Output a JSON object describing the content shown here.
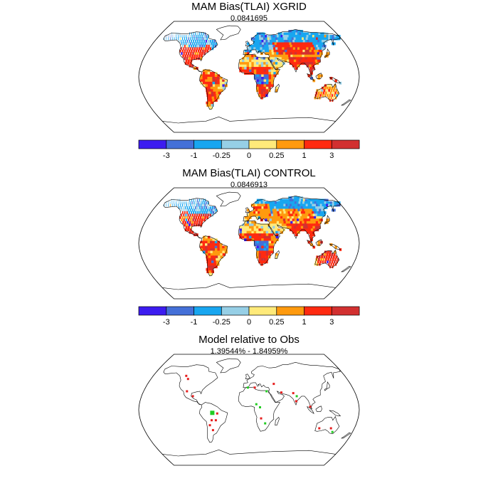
{
  "colors": {
    "lt-3": "#3c1cf0",
    "-3to-1": "#4470d8",
    "-1to-0.25": "#18a6f0",
    "-0.25to0": "#96cfe6",
    "0to0.25": "#ffea7a",
    "0.25to1": "#ff9a0e",
    "1to3": "#ff2a10",
    "gt3": "#d23030",
    "relative_high": "#e61e1e",
    "relative_low": "#22cc22",
    "coast": "#000000"
  },
  "colorbar": {
    "levels": [
      "-3",
      "-1",
      "-0.25",
      "0",
      "0.25",
      "1",
      "3"
    ],
    "bins": [
      "lt-3",
      "-3to-1",
      "-1to-0.25",
      "-0.25to0",
      "0to0.25",
      "0.25to1",
      "1to3",
      "gt3"
    ]
  },
  "panels": [
    {
      "title": "MAM Bias(TLAI) XGRID",
      "subtitle": "0.0841695"
    },
    {
      "title": "MAM Bias(TLAI) CONTROL",
      "subtitle": "0.0846913"
    },
    {
      "title": "Model relative to Obs",
      "subtitle": "1.39544% - 1.84959%"
    }
  ],
  "chart_data": [
    {
      "type": "heatmap",
      "title": "MAM Bias(TLAI) XGRID",
      "subtitle": "0.0841695",
      "projection": "Robinson",
      "colorbar_levels": [
        -3,
        -1,
        -0.25,
        0,
        0.25,
        1,
        3
      ],
      "regions": [
        {
          "name": "Alaska / W Canada",
          "lon": [
            -165,
            -115
          ],
          "lat": [
            52,
            72
          ],
          "class": "-1to-0.25"
        },
        {
          "name": "E Canada",
          "lon": [
            -110,
            -60
          ],
          "lat": [
            50,
            70
          ],
          "class": "-1to-0.25"
        },
        {
          "name": "USA",
          "lon": [
            -125,
            -70
          ],
          "lat": [
            28,
            50
          ],
          "class": "1to3"
        },
        {
          "name": "Mexico / Central America",
          "lon": [
            -115,
            -80
          ],
          "lat": [
            10,
            28
          ],
          "class": "1to3"
        },
        {
          "name": "Amazon",
          "lon": [
            -75,
            -48
          ],
          "lat": [
            -12,
            5
          ],
          "class": "1to3"
        },
        {
          "name": "Brazil east",
          "lon": [
            -50,
            -36
          ],
          "lat": [
            -20,
            -3
          ],
          "class": "0to0.25"
        },
        {
          "name": "Southern South America",
          "lon": [
            -72,
            -55
          ],
          "lat": [
            -45,
            -20
          ],
          "class": "1to3"
        },
        {
          "name": "Europe",
          "lon": [
            -10,
            40
          ],
          "lat": [
            42,
            62
          ],
          "class": "-1to-0.25"
        },
        {
          "name": "Northern Eurasia",
          "lon": [
            40,
            175
          ],
          "lat": [
            55,
            72
          ],
          "class": "-1to-0.25"
        },
        {
          "name": "Central Asia",
          "lon": [
            45,
            120
          ],
          "lat": [
            38,
            55
          ],
          "class": "1to3"
        },
        {
          "name": "Sahara / Arabia",
          "lon": [
            -15,
            60
          ],
          "lat": [
            15,
            32
          ],
          "class": "0to0.25"
        },
        {
          "name": "Sahel / West Africa",
          "lon": [
            -15,
            35
          ],
          "lat": [
            5,
            15
          ],
          "class": "1to3"
        },
        {
          "name": "Central Africa",
          "lon": [
            10,
            32
          ],
          "lat": [
            -10,
            5
          ],
          "class": "-3to-1"
        },
        {
          "name": "Southern Africa",
          "lon": [
            15,
            35
          ],
          "lat": [
            -34,
            -10
          ],
          "class": "1to3"
        },
        {
          "name": "India / SE Asia",
          "lon": [
            70,
            120
          ],
          "lat": [
            5,
            30
          ],
          "class": "1to3"
        },
        {
          "name": "Maritime SE Asia",
          "lon": [
            95,
            150
          ],
          "lat": [
            -10,
            5
          ],
          "class": "1to3"
        },
        {
          "name": "Australia",
          "lon": [
            115,
            153
          ],
          "lat": [
            -38,
            -12
          ],
          "class": "0.25to1"
        }
      ]
    },
    {
      "type": "heatmap",
      "title": "MAM Bias(TLAI) CONTROL",
      "subtitle": "0.0846913",
      "projection": "Robinson",
      "colorbar_levels": [
        -3,
        -1,
        -0.25,
        0,
        0.25,
        1,
        3
      ],
      "regions": [
        {
          "name": "Alaska / W Canada",
          "lon": [
            -165,
            -115
          ],
          "lat": [
            52,
            72
          ],
          "class": "-1to-0.25"
        },
        {
          "name": "E Canada",
          "lon": [
            -110,
            -60
          ],
          "lat": [
            50,
            70
          ],
          "class": "-1to-0.25"
        },
        {
          "name": "USA",
          "lon": [
            -125,
            -70
          ],
          "lat": [
            28,
            50
          ],
          "class": "1to3"
        },
        {
          "name": "Mexico / Central America",
          "lon": [
            -115,
            -80
          ],
          "lat": [
            10,
            28
          ],
          "class": "1to3"
        },
        {
          "name": "Amazon",
          "lon": [
            -75,
            -48
          ],
          "lat": [
            -12,
            5
          ],
          "class": "1to3"
        },
        {
          "name": "Brazil east",
          "lon": [
            -50,
            -36
          ],
          "lat": [
            -20,
            -3
          ],
          "class": "0.25to1"
        },
        {
          "name": "Southern South America",
          "lon": [
            -72,
            -55
          ],
          "lat": [
            -45,
            -20
          ],
          "class": "1to3"
        },
        {
          "name": "Europe",
          "lon": [
            -10,
            40
          ],
          "lat": [
            42,
            62
          ],
          "class": "0.25to1"
        },
        {
          "name": "Northern Eurasia",
          "lon": [
            40,
            175
          ],
          "lat": [
            55,
            72
          ],
          "class": "-1to-0.25"
        },
        {
          "name": "Central Asia",
          "lon": [
            45,
            120
          ],
          "lat": [
            38,
            55
          ],
          "class": "0.25to1"
        },
        {
          "name": "Sahara / Arabia",
          "lon": [
            -15,
            60
          ],
          "lat": [
            15,
            32
          ],
          "class": "0to0.25"
        },
        {
          "name": "Sahel / West Africa",
          "lon": [
            -15,
            35
          ],
          "lat": [
            5,
            15
          ],
          "class": "1to3"
        },
        {
          "name": "Central Africa",
          "lon": [
            10,
            32
          ],
          "lat": [
            -10,
            5
          ],
          "class": "-3to-1"
        },
        {
          "name": "Southern Africa",
          "lon": [
            15,
            35
          ],
          "lat": [
            -34,
            -10
          ],
          "class": "1to3"
        },
        {
          "name": "India / SE Asia",
          "lon": [
            70,
            120
          ],
          "lat": [
            5,
            30
          ],
          "class": "1to3"
        },
        {
          "name": "Maritime SE Asia",
          "lon": [
            95,
            150
          ],
          "lat": [
            -10,
            5
          ],
          "class": "1to3"
        },
        {
          "name": "Australia",
          "lon": [
            115,
            153
          ],
          "lat": [
            -38,
            -12
          ],
          "class": "1to3"
        }
      ]
    },
    {
      "type": "scatter",
      "title": "Model relative to Obs",
      "subtitle": "1.39544% - 1.84959%",
      "projection": "Robinson",
      "points": [
        {
          "lon": -118,
          "lat": 55,
          "class": "relative_high"
        },
        {
          "lon": -112,
          "lat": 50,
          "class": "relative_high"
        },
        {
          "lon": -106,
          "lat": 30,
          "class": "relative_high"
        },
        {
          "lon": -94,
          "lat": 22,
          "class": "relative_high"
        },
        {
          "lon": -60,
          "lat": -5,
          "class": "relative_low"
        },
        {
          "lon": -52,
          "lat": -6,
          "class": "relative_high"
        },
        {
          "lon": -62,
          "lat": -17,
          "class": "relative_high"
        },
        {
          "lon": -55,
          "lat": -17,
          "class": "relative_high"
        },
        {
          "lon": -66,
          "lat": -25,
          "class": "relative_high"
        },
        {
          "lon": -62,
          "lat": -33,
          "class": "relative_high"
        },
        {
          "lon": -2,
          "lat": 36,
          "class": "relative_low"
        },
        {
          "lon": 10,
          "lat": 36,
          "class": "relative_high"
        },
        {
          "lon": 12,
          "lat": 9,
          "class": "relative_low"
        },
        {
          "lon": 18,
          "lat": 4,
          "class": "relative_low"
        },
        {
          "lon": 20,
          "lat": -14,
          "class": "relative_high"
        },
        {
          "lon": 27,
          "lat": -22,
          "class": "relative_low"
        },
        {
          "lon": 30,
          "lat": 30,
          "class": "relative_low"
        },
        {
          "lon": 44,
          "lat": 42,
          "class": "relative_high"
        },
        {
          "lon": 55,
          "lat": 28,
          "class": "relative_high"
        },
        {
          "lon": 75,
          "lat": 27,
          "class": "relative_high"
        },
        {
          "lon": 80,
          "lat": 22,
          "class": "relative_low"
        },
        {
          "lon": 78,
          "lat": 14,
          "class": "relative_high"
        },
        {
          "lon": 100,
          "lat": 5,
          "class": "relative_high"
        },
        {
          "lon": 140,
          "lat": -30,
          "class": "relative_high"
        },
        {
          "lon": 145,
          "lat": -36,
          "class": "relative_low"
        },
        {
          "lon": 120,
          "lat": -30,
          "class": "relative_high"
        }
      ]
    }
  ]
}
